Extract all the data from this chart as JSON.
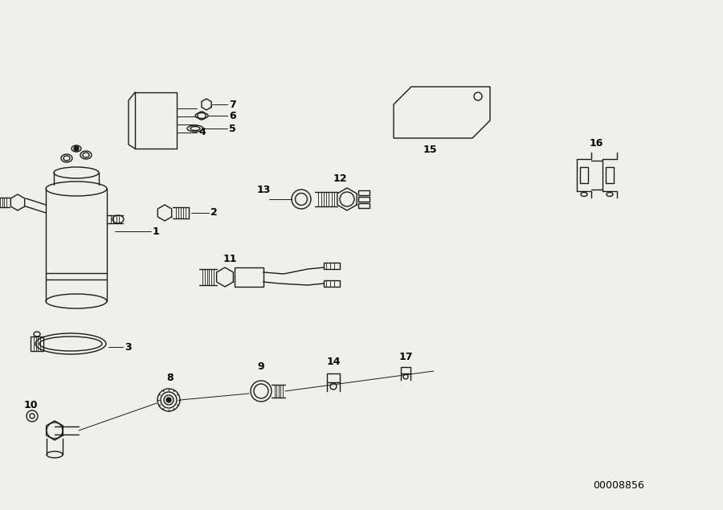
{
  "bg_color": "#f0f0eb",
  "line_color": "#1a1a1a",
  "label_color": "#000000",
  "part_number_text": "00008856",
  "fig_width": 9.0,
  "fig_height": 6.35,
  "dpi": 100
}
